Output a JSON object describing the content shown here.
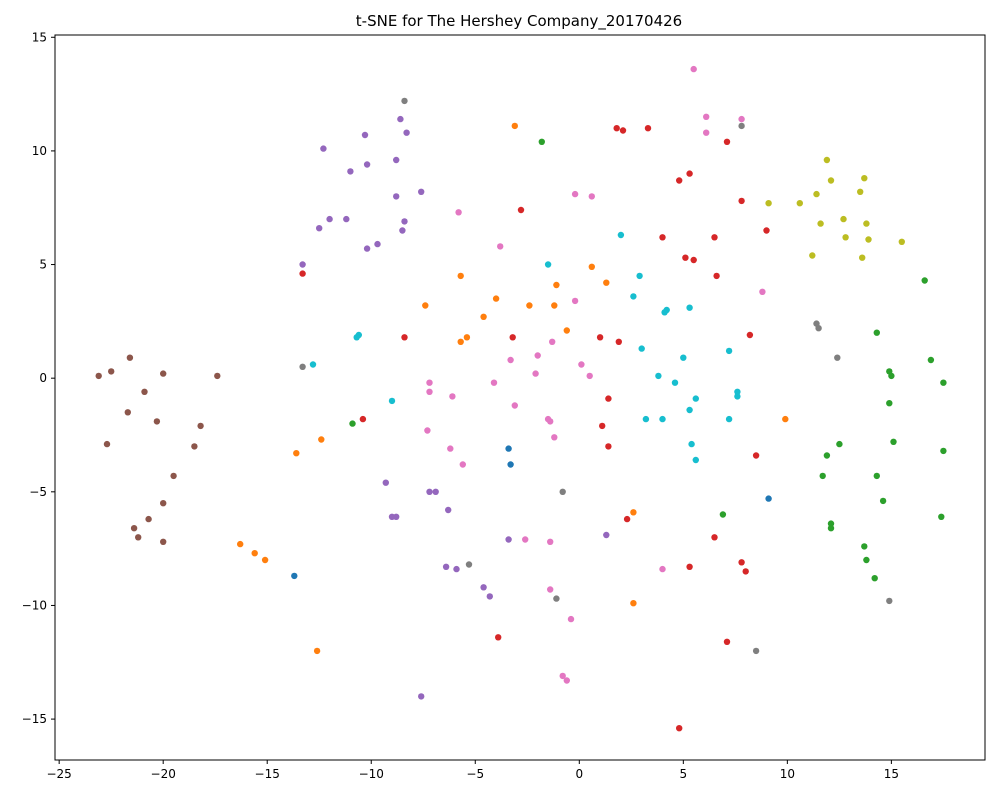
{
  "chart_data": {
    "type": "scatter",
    "title": "t-SNE for The Hershey Company_20170426",
    "xlabel": "",
    "ylabel": "",
    "xlim": [
      -25.2,
      19.5
    ],
    "ylim": [
      -16.8,
      15.1
    ],
    "x_ticks": [
      -25,
      -20,
      -15,
      -10,
      -5,
      0,
      5,
      10,
      15
    ],
    "y_ticks": [
      15,
      10,
      5,
      0,
      -5,
      -10,
      -15
    ],
    "grid": false,
    "series": [
      {
        "color": "#1f77b4",
        "points": [
          [
            -3.4,
            -3.1
          ],
          [
            -3.3,
            -3.8
          ],
          [
            -13.7,
            -8.7
          ],
          [
            9.1,
            -5.3
          ]
        ]
      },
      {
        "color": "#ff7f0e",
        "points": [
          [
            -3.1,
            11.1
          ],
          [
            0.6,
            4.9
          ],
          [
            -5.7,
            4.5
          ],
          [
            -1.1,
            4.1
          ],
          [
            1.3,
            4.2
          ],
          [
            -4.0,
            3.5
          ],
          [
            -7.4,
            3.2
          ],
          [
            -2.4,
            3.2
          ],
          [
            -1.2,
            3.2
          ],
          [
            -4.6,
            2.7
          ],
          [
            -0.6,
            2.1
          ],
          [
            -5.4,
            1.8
          ],
          [
            -5.7,
            1.6
          ],
          [
            9.9,
            -1.8
          ],
          [
            -12.4,
            -2.7
          ],
          [
            -13.6,
            -3.3
          ],
          [
            2.6,
            -5.9
          ],
          [
            -16.3,
            -7.3
          ],
          [
            -15.6,
            -7.7
          ],
          [
            -15.1,
            -8.0
          ],
          [
            2.6,
            -9.9
          ],
          [
            -12.6,
            -12.0
          ]
        ]
      },
      {
        "color": "#2ca02c",
        "points": [
          [
            -1.8,
            10.4
          ],
          [
            16.6,
            4.3
          ],
          [
            14.3,
            2.0
          ],
          [
            16.9,
            0.8
          ],
          [
            14.9,
            0.3
          ],
          [
            15.0,
            0.1
          ],
          [
            17.5,
            -0.2
          ],
          [
            14.9,
            -1.1
          ],
          [
            -10.9,
            -2.0
          ],
          [
            15.1,
            -2.8
          ],
          [
            12.5,
            -2.9
          ],
          [
            17.5,
            -3.2
          ],
          [
            11.9,
            -3.4
          ],
          [
            11.7,
            -4.3
          ],
          [
            14.3,
            -4.3
          ],
          [
            14.6,
            -5.4
          ],
          [
            6.9,
            -6.0
          ],
          [
            17.4,
            -6.1
          ],
          [
            12.1,
            -6.4
          ],
          [
            12.1,
            -6.6
          ],
          [
            13.7,
            -7.4
          ],
          [
            13.8,
            -8.0
          ],
          [
            14.2,
            -8.8
          ]
        ]
      },
      {
        "color": "#d62728",
        "points": [
          [
            1.8,
            11.0
          ],
          [
            2.1,
            10.9
          ],
          [
            3.3,
            11.0
          ],
          [
            7.1,
            10.4
          ],
          [
            5.3,
            9.0
          ],
          [
            4.8,
            8.7
          ],
          [
            7.8,
            7.8
          ],
          [
            -2.8,
            7.4
          ],
          [
            9.0,
            6.5
          ],
          [
            4.0,
            6.2
          ],
          [
            6.5,
            6.2
          ],
          [
            5.1,
            5.3
          ],
          [
            5.5,
            5.2
          ],
          [
            -13.3,
            4.6
          ],
          [
            6.6,
            4.5
          ],
          [
            8.2,
            1.9
          ],
          [
            -8.4,
            1.8
          ],
          [
            -3.2,
            1.8
          ],
          [
            1.0,
            1.8
          ],
          [
            1.9,
            1.6
          ],
          [
            1.4,
            -0.9
          ],
          [
            -10.4,
            -1.8
          ],
          [
            1.1,
            -2.1
          ],
          [
            1.4,
            -3.0
          ],
          [
            8.5,
            -3.4
          ],
          [
            2.3,
            -6.2
          ],
          [
            6.5,
            -7.0
          ],
          [
            7.8,
            -8.1
          ],
          [
            5.3,
            -8.3
          ],
          [
            8.0,
            -8.5
          ],
          [
            -3.9,
            -11.4
          ],
          [
            7.1,
            -11.6
          ],
          [
            4.8,
            -15.4
          ]
        ]
      },
      {
        "color": "#9467bd",
        "points": [
          [
            -8.6,
            11.4
          ],
          [
            -8.3,
            10.8
          ],
          [
            -10.3,
            10.7
          ],
          [
            -12.3,
            10.1
          ],
          [
            -8.8,
            9.6
          ],
          [
            -10.2,
            9.4
          ],
          [
            -11.0,
            9.1
          ],
          [
            -7.6,
            8.2
          ],
          [
            -8.8,
            8.0
          ],
          [
            -12.0,
            7.0
          ],
          [
            -11.2,
            7.0
          ],
          [
            -8.4,
            6.9
          ],
          [
            -12.5,
            6.6
          ],
          [
            -8.5,
            6.5
          ],
          [
            -9.7,
            5.9
          ],
          [
            -10.2,
            5.7
          ],
          [
            -13.3,
            5.0
          ],
          [
            -9.3,
            -4.6
          ],
          [
            -6.9,
            -5.0
          ],
          [
            -7.2,
            -5.0
          ],
          [
            -6.3,
            -5.8
          ],
          [
            -9.0,
            -6.1
          ],
          [
            -8.8,
            -6.1
          ],
          [
            1.3,
            -6.9
          ],
          [
            -3.4,
            -7.1
          ],
          [
            -6.4,
            -8.3
          ],
          [
            -5.9,
            -8.4
          ],
          [
            -4.6,
            -9.2
          ],
          [
            -4.3,
            -9.6
          ],
          [
            -7.6,
            -14.0
          ]
        ]
      },
      {
        "color": "#8c564b",
        "points": [
          [
            -21.6,
            0.9
          ],
          [
            -22.5,
            0.3
          ],
          [
            -23.1,
            0.1
          ],
          [
            -20.0,
            0.2
          ],
          [
            -17.4,
            0.1
          ],
          [
            -20.9,
            -0.6
          ],
          [
            -21.7,
            -1.5
          ],
          [
            -20.3,
            -1.9
          ],
          [
            -18.2,
            -2.1
          ],
          [
            -22.7,
            -2.9
          ],
          [
            -18.5,
            -3.0
          ],
          [
            -19.5,
            -4.3
          ],
          [
            -20.0,
            -5.5
          ],
          [
            -20.7,
            -6.2
          ],
          [
            -21.4,
            -6.6
          ],
          [
            -21.2,
            -7.0
          ],
          [
            -20.0,
            -7.2
          ]
        ]
      },
      {
        "color": "#e377c2",
        "points": [
          [
            5.5,
            13.6
          ],
          [
            6.1,
            11.5
          ],
          [
            7.8,
            11.4
          ],
          [
            6.1,
            10.8
          ],
          [
            -0.2,
            8.1
          ],
          [
            0.6,
            8.0
          ],
          [
            -5.8,
            7.3
          ],
          [
            -3.8,
            5.8
          ],
          [
            8.8,
            3.8
          ],
          [
            -0.2,
            3.4
          ],
          [
            -1.3,
            1.6
          ],
          [
            -2.0,
            1.0
          ],
          [
            -3.3,
            0.8
          ],
          [
            0.1,
            0.6
          ],
          [
            -2.1,
            0.2
          ],
          [
            0.5,
            0.1
          ],
          [
            -7.2,
            -0.2
          ],
          [
            -4.1,
            -0.2
          ],
          [
            -7.2,
            -0.6
          ],
          [
            -6.1,
            -0.8
          ],
          [
            -3.1,
            -1.2
          ],
          [
            -1.5,
            -1.8
          ],
          [
            -1.4,
            -1.9
          ],
          [
            -7.3,
            -2.3
          ],
          [
            -1.2,
            -2.6
          ],
          [
            -6.2,
            -3.1
          ],
          [
            -5.6,
            -3.8
          ],
          [
            -2.6,
            -7.1
          ],
          [
            -1.4,
            -7.2
          ],
          [
            4.0,
            -8.4
          ],
          [
            -1.4,
            -9.3
          ],
          [
            -0.4,
            -10.6
          ],
          [
            -0.8,
            -13.1
          ],
          [
            -0.6,
            -13.3
          ]
        ]
      },
      {
        "color": "#7f7f7f",
        "points": [
          [
            -8.4,
            12.2
          ],
          [
            7.8,
            11.1
          ],
          [
            11.4,
            2.4
          ],
          [
            11.5,
            2.2
          ],
          [
            12.4,
            0.9
          ],
          [
            -13.3,
            0.5
          ],
          [
            -0.8,
            -5.0
          ],
          [
            -5.3,
            -8.2
          ],
          [
            -1.1,
            -9.7
          ],
          [
            14.9,
            -9.8
          ],
          [
            8.5,
            -12.0
          ]
        ]
      },
      {
        "color": "#bcbd22",
        "points": [
          [
            11.9,
            9.6
          ],
          [
            13.7,
            8.8
          ],
          [
            12.1,
            8.7
          ],
          [
            11.4,
            8.1
          ],
          [
            13.5,
            8.2
          ],
          [
            9.1,
            7.7
          ],
          [
            10.6,
            7.7
          ],
          [
            12.7,
            7.0
          ],
          [
            11.6,
            6.8
          ],
          [
            13.8,
            6.8
          ],
          [
            12.8,
            6.2
          ],
          [
            13.9,
            6.1
          ],
          [
            15.5,
            6.0
          ],
          [
            11.2,
            5.4
          ],
          [
            13.6,
            5.3
          ]
        ]
      },
      {
        "color": "#17becf",
        "points": [
          [
            2.0,
            6.3
          ],
          [
            -1.5,
            5.0
          ],
          [
            2.9,
            4.5
          ],
          [
            2.6,
            3.6
          ],
          [
            5.3,
            3.1
          ],
          [
            4.2,
            3.0
          ],
          [
            4.1,
            2.9
          ],
          [
            -10.6,
            1.9
          ],
          [
            -10.7,
            1.8
          ],
          [
            3.0,
            1.3
          ],
          [
            7.2,
            1.2
          ],
          [
            5.0,
            0.9
          ],
          [
            -12.8,
            0.6
          ],
          [
            3.8,
            0.1
          ],
          [
            4.6,
            -0.2
          ],
          [
            7.6,
            -0.6
          ],
          [
            7.6,
            -0.8
          ],
          [
            5.6,
            -0.9
          ],
          [
            -9.0,
            -1.0
          ],
          [
            5.3,
            -1.4
          ],
          [
            3.2,
            -1.8
          ],
          [
            4.0,
            -1.8
          ],
          [
            7.2,
            -1.8
          ],
          [
            5.4,
            -2.9
          ],
          [
            5.6,
            -3.6
          ]
        ]
      }
    ]
  }
}
